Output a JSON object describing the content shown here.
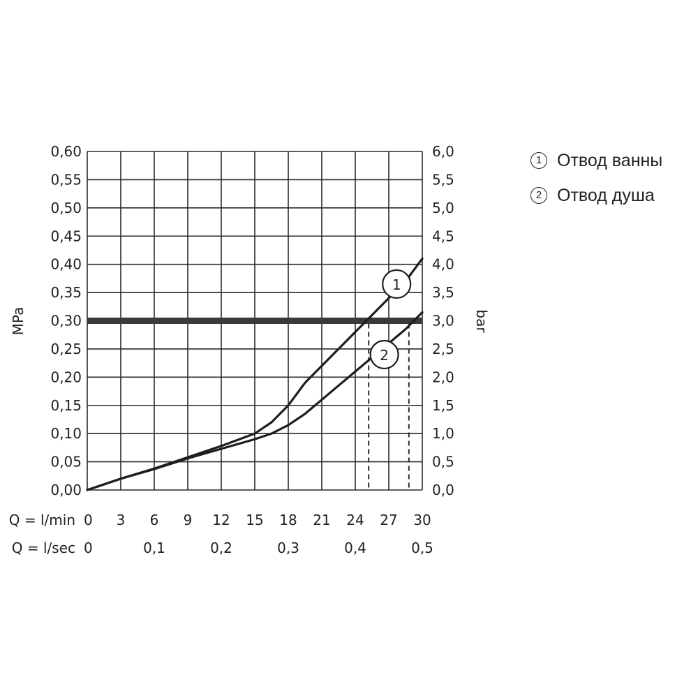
{
  "chart_data": {
    "type": "line",
    "ylabel_left": "MPa",
    "ylabel_right": "bar",
    "x_label_rows": [
      {
        "label": "Q = l/min",
        "ticks": [
          "0",
          "3",
          "6",
          "9",
          "12",
          "15",
          "18",
          "21",
          "24",
          "27",
          "30"
        ],
        "positions": [
          0,
          3,
          6,
          9,
          12,
          15,
          18,
          21,
          24,
          27,
          30
        ]
      },
      {
        "label": "Q = l/sec",
        "ticks": [
          "0",
          "0,1",
          "0,2",
          "0,3",
          "0,4",
          "0,5"
        ],
        "positions": [
          0,
          6,
          12,
          18,
          24,
          30
        ]
      }
    ],
    "xlim": [
      0,
      30
    ],
    "ylim": [
      0,
      0.6
    ],
    "y_ticks_left": [
      "0,00",
      "0,05",
      "0,10",
      "0,15",
      "0,20",
      "0,25",
      "0,30",
      "0,35",
      "0,40",
      "0,45",
      "0,50",
      "0,55",
      "0,60"
    ],
    "y_ticks_right": [
      "0,0",
      "0,5",
      "1,0",
      "1,5",
      "2,0",
      "2,5",
      "3,0",
      "3,5",
      "4,0",
      "4,5",
      "5,0",
      "5,5",
      "6,0"
    ],
    "grid": true,
    "reference_line": {
      "y": 0.3
    },
    "series": [
      {
        "marker": "1",
        "x": [
          0,
          3,
          6,
          9,
          12,
          15,
          16.5,
          18,
          19.5,
          21,
          22.5,
          24,
          25.5,
          27,
          28.5,
          30
        ],
        "y": [
          0,
          0.02,
          0.038,
          0.058,
          0.078,
          0.1,
          0.12,
          0.15,
          0.19,
          0.22,
          0.25,
          0.28,
          0.31,
          0.34,
          0.37,
          0.41
        ]
      },
      {
        "marker": "2",
        "x": [
          0,
          3,
          6,
          9,
          12,
          15,
          16.5,
          18,
          19.5,
          21,
          22.5,
          24,
          25.5,
          27,
          28.5,
          30
        ],
        "y": [
          0,
          0.02,
          0.037,
          0.056,
          0.073,
          0.09,
          0.1,
          0.115,
          0.135,
          0.16,
          0.185,
          0.21,
          0.235,
          0.26,
          0.285,
          0.315
        ]
      }
    ],
    "intersections_x": [
      25.2,
      28.8
    ],
    "legend": {
      "placement": "right",
      "items": [
        {
          "num": "1",
          "text": "Отвод ванны"
        },
        {
          "num": "2",
          "text": "Отвод душа"
        }
      ]
    }
  }
}
